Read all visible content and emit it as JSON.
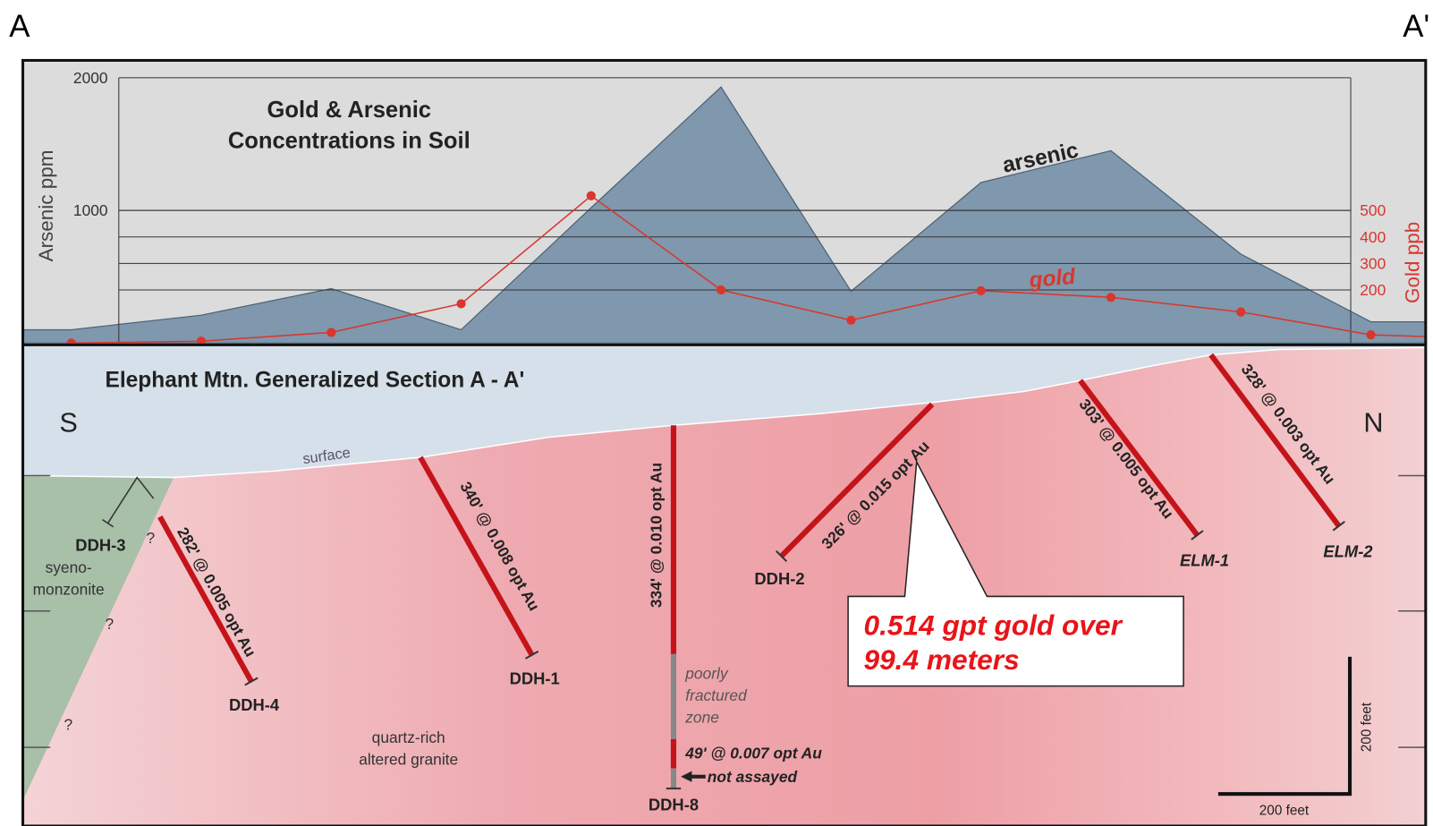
{
  "corner_labels": [
    "A",
    "A'"
  ],
  "soil_chart": {
    "type": "area-line",
    "title_lines": [
      "Gold & Arsenic",
      "Concentrations in Soil"
    ],
    "y_label": "Arsenic ppm",
    "y2_label": "Gold ppb",
    "ylim": [
      0,
      2000
    ],
    "yticks": [
      1000,
      2000
    ],
    "y2lim": [
      0,
      1000
    ],
    "y2ticks": [
      200,
      300,
      400,
      500
    ],
    "series": [
      {
        "name": "arsenic",
        "color": "#7f98ad",
        "values": [
          100,
          210,
          410,
          100,
          1020,
          1930,
          390,
          1210,
          1450,
          670,
          160
        ]
      },
      {
        "name": "gold",
        "color": "#d9362e",
        "axis": "y2",
        "values": [
          0,
          7,
          40,
          148,
          555,
          200,
          86,
          197,
          172,
          117,
          31
        ]
      }
    ]
  },
  "section": {
    "title": "Elephant Mtn. Generalized Section A - A'",
    "compass": [
      "S",
      "N"
    ],
    "surface": "surface",
    "rock_labels": [
      [
        "syeno-",
        "monzonite"
      ],
      [
        "quartz-rich",
        "altered granite"
      ]
    ],
    "question_marks": [
      "?",
      "?",
      "?"
    ],
    "drill_holes": [
      {
        "name": "DDH-3"
      },
      {
        "name": "DDH-4",
        "intercept": "282' @ 0.005 opt Au"
      },
      {
        "name": "DDH-1",
        "intercept": "340' @ 0.008 opt Au"
      },
      {
        "name": "DDH-8",
        "intercept": "334' @ 0.010 opt Au"
      },
      {
        "name": "DDH-2",
        "intercept": "326' @ 0.015 opt Au"
      },
      {
        "name": "ELM-1",
        "intercept": "303' @ 0.005 opt Au"
      },
      {
        "name": "ELM-2",
        "intercept": "328' @ 0.003 opt Au"
      }
    ],
    "ddh8_notes": {
      "zone": [
        "poorly",
        "fractured",
        "zone"
      ],
      "lower_intercept": "49' @ 0.007 opt Au",
      "not_assayed": "not assayed"
    },
    "callout": [
      "0.514 gpt gold over",
      "99.4 meters"
    ],
    "scale_bar": {
      "horizontal": "200 feet",
      "vertical": "200 feet"
    }
  }
}
